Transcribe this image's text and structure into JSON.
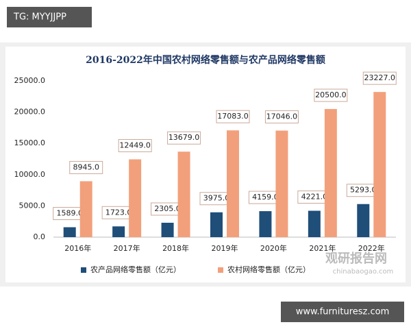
{
  "watermarks": {
    "top_left": "TG: MYYJJPP",
    "bottom_right": "www.furnituresz.com",
    "logo": "观研报告网",
    "logo_url": "chinabaogao.com"
  },
  "chart_data": {
    "type": "bar",
    "title": "2016-2022年中国农村网络零售额与农产品网络零售额",
    "categories": [
      "2016年",
      "2017年",
      "2018年",
      "2019年",
      "2020年",
      "2021年",
      "2022年"
    ],
    "series": [
      {
        "name": "农产品网络零售额（亿元）",
        "color": "#1f4e79",
        "values": [
          1589,
          1723,
          2305,
          3975,
          4159,
          4221,
          5293
        ],
        "value_labels": [
          "1589.0",
          "1723.0",
          "2305.0",
          "3975.0",
          "4159.0",
          "4221.0",
          "5293.0"
        ]
      },
      {
        "name": "农村网络零售额（亿元）",
        "color": "#f2a07b",
        "values": [
          8945,
          12449,
          13679,
          17083,
          17046,
          20500,
          23227
        ],
        "value_labels": [
          "8945.0",
          "12449.0",
          "13679.0",
          "17083.0",
          "17046.0",
          "20500.0",
          "23227.0"
        ]
      }
    ],
    "ylim": [
      0,
      25000
    ],
    "yticks": [
      {
        "value": 0,
        "label": "0.0"
      },
      {
        "value": 5000,
        "label": "5000.0"
      },
      {
        "value": 10000,
        "label": "10000.0"
      },
      {
        "value": 15000,
        "label": "15000.0"
      },
      {
        "value": 20000,
        "label": "20000.0"
      },
      {
        "value": 25000,
        "label": "25000.0"
      }
    ],
    "grid": false,
    "legend": "bottom"
  }
}
